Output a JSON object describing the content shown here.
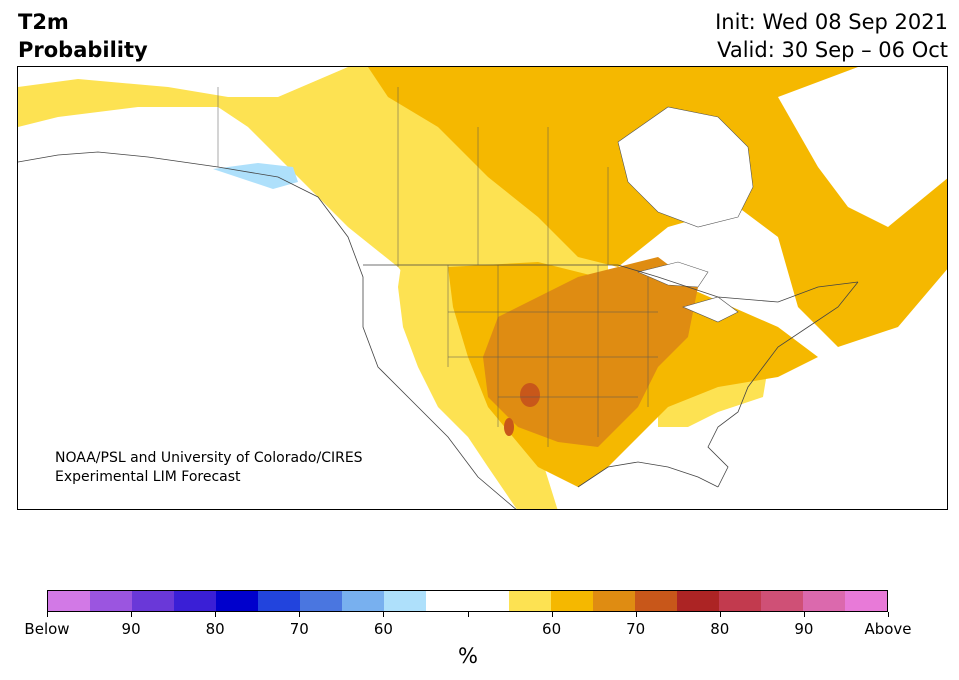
{
  "title": {
    "line1": "T2m",
    "line2": "Probability"
  },
  "init_label": "Init: Wed 08 Sep 2021",
  "valid_label": "Valid: 30 Sep – 06 Oct",
  "credit": {
    "line1": "NOAA/PSL and University of Colorado/CIRES",
    "line2": "Experimental LIM Forecast"
  },
  "colorbar": {
    "unit": "%",
    "colors": [
      "#d279e6",
      "#9b55e0",
      "#6a38d8",
      "#3a1fd6",
      "#0000cc",
      "#2244dd",
      "#4a76e0",
      "#78b0ef",
      "#aee0fb",
      "#ffffff",
      "#ffffff",
      "#fde252",
      "#f5b800",
      "#df8c12",
      "#c8571a",
      "#ac2424",
      "#c23a4e",
      "#cf5076",
      "#db69ad",
      "#e87ad8"
    ],
    "labels": [
      "Below",
      "90",
      "80",
      "70",
      "60",
      "",
      "60",
      "70",
      "80",
      "90",
      "Above"
    ]
  },
  "map_colors": {
    "light_yellow": "#fde252",
    "gold": "#f5b800",
    "orange": "#df8c12",
    "dark_orange": "#c8571a",
    "light_blue": "#aee0fb"
  }
}
